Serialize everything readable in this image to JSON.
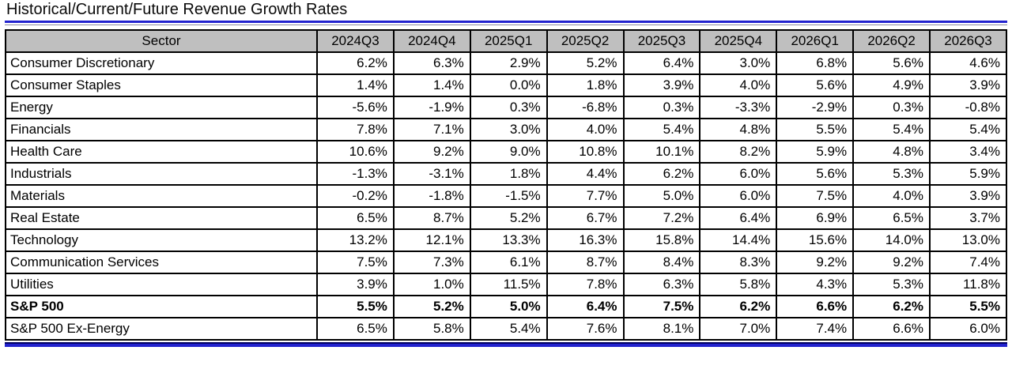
{
  "title": "Historical/Current/Future Revenue Growth Rates",
  "colors": {
    "accent_blue": "#2222CE",
    "rule_gray": "#8A8A9E",
    "rule_dark_blue": "#000060",
    "header_bg": "#BFBFBF",
    "border_black": "#000000"
  },
  "chart_data": {
    "type": "table",
    "title": "Historical/Current/Future Revenue Growth Rates",
    "columns": [
      "Sector",
      "2024Q3",
      "2024Q4",
      "2025Q1",
      "2025Q2",
      "2025Q3",
      "2025Q4",
      "2026Q1",
      "2026Q2",
      "2026Q3"
    ],
    "rows": [
      {
        "sector": "Consumer Discretionary",
        "bold": false,
        "values": [
          "6.2%",
          "6.3%",
          "2.9%",
          "5.2%",
          "6.4%",
          "3.0%",
          "6.8%",
          "5.6%",
          "4.6%"
        ]
      },
      {
        "sector": "Consumer Staples",
        "bold": false,
        "values": [
          "1.4%",
          "1.4%",
          "0.0%",
          "1.8%",
          "3.9%",
          "4.0%",
          "5.6%",
          "4.9%",
          "3.9%"
        ]
      },
      {
        "sector": "Energy",
        "bold": false,
        "values": [
          "-5.6%",
          "-1.9%",
          "0.3%",
          "-6.8%",
          "0.3%",
          "-3.3%",
          "-2.9%",
          "0.3%",
          "-0.8%"
        ]
      },
      {
        "sector": "Financials",
        "bold": false,
        "values": [
          "7.8%",
          "7.1%",
          "3.0%",
          "4.0%",
          "5.4%",
          "4.8%",
          "5.5%",
          "5.4%",
          "5.4%"
        ]
      },
      {
        "sector": "Health Care",
        "bold": false,
        "values": [
          "10.6%",
          "9.2%",
          "9.0%",
          "10.8%",
          "10.1%",
          "8.2%",
          "5.9%",
          "4.8%",
          "3.4%"
        ]
      },
      {
        "sector": "Industrials",
        "bold": false,
        "values": [
          "-1.3%",
          "-3.1%",
          "1.8%",
          "4.4%",
          "6.2%",
          "6.0%",
          "5.6%",
          "5.3%",
          "5.9%"
        ]
      },
      {
        "sector": "Materials",
        "bold": false,
        "values": [
          "-0.2%",
          "-1.8%",
          "-1.5%",
          "7.7%",
          "5.0%",
          "6.0%",
          "7.5%",
          "4.0%",
          "3.9%"
        ]
      },
      {
        "sector": "Real Estate",
        "bold": false,
        "values": [
          "6.5%",
          "8.7%",
          "5.2%",
          "6.7%",
          "7.2%",
          "6.4%",
          "6.9%",
          "6.5%",
          "3.7%"
        ]
      },
      {
        "sector": "Technology",
        "bold": false,
        "values": [
          "13.2%",
          "12.1%",
          "13.3%",
          "16.3%",
          "15.8%",
          "14.4%",
          "15.6%",
          "14.0%",
          "13.0%"
        ]
      },
      {
        "sector": "Communication Services",
        "bold": false,
        "values": [
          "7.5%",
          "7.3%",
          "6.1%",
          "8.7%",
          "8.4%",
          "8.3%",
          "9.2%",
          "9.2%",
          "7.4%"
        ]
      },
      {
        "sector": "Utilities",
        "bold": false,
        "values": [
          "3.9%",
          "1.0%",
          "11.5%",
          "7.8%",
          "6.3%",
          "5.8%",
          "4.3%",
          "5.3%",
          "11.8%"
        ]
      },
      {
        "sector": "S&P 500",
        "bold": true,
        "values": [
          "5.5%",
          "5.2%",
          "5.0%",
          "6.4%",
          "7.5%",
          "6.2%",
          "6.6%",
          "6.2%",
          "5.5%"
        ]
      },
      {
        "sector": "S&P 500 Ex-Energy",
        "bold": false,
        "values": [
          "6.5%",
          "5.8%",
          "5.4%",
          "7.6%",
          "8.1%",
          "7.0%",
          "7.4%",
          "6.6%",
          "6.0%"
        ]
      }
    ]
  }
}
